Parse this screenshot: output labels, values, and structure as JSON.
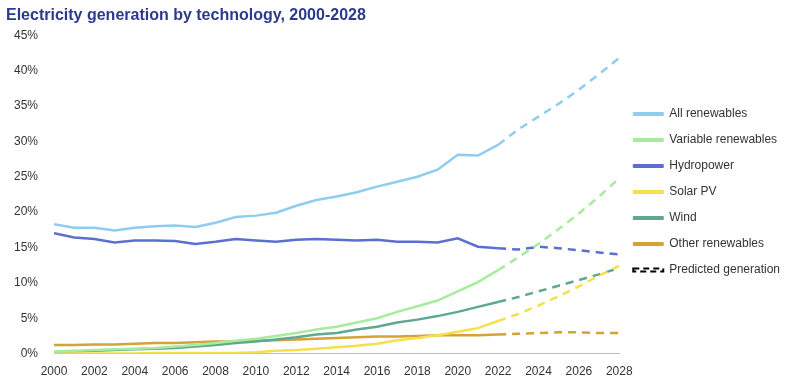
{
  "chart_data": {
    "type": "line",
    "title": "Electricity generation by technology, 2000-2028",
    "x": [
      2000,
      2001,
      2002,
      2003,
      2004,
      2005,
      2006,
      2007,
      2008,
      2009,
      2010,
      2011,
      2012,
      2013,
      2014,
      2015,
      2016,
      2017,
      2018,
      2019,
      2020,
      2021,
      2022,
      2023,
      2024,
      2025,
      2026,
      2027,
      2028
    ],
    "xlim": [
      2000,
      2028
    ],
    "xticks": [
      2000,
      2002,
      2004,
      2006,
      2008,
      2010,
      2012,
      2014,
      2016,
      2018,
      2020,
      2022,
      2024,
      2026,
      2028
    ],
    "ylim": [
      0,
      45
    ],
    "yticks": [
      {
        "value": 0,
        "label": "0%"
      },
      {
        "value": 5,
        "label": "5%"
      },
      {
        "value": 10,
        "label": "10%"
      },
      {
        "value": 15,
        "label": "15%"
      },
      {
        "value": 20,
        "label": "20%"
      },
      {
        "value": 25,
        "label": "25%"
      },
      {
        "value": 30,
        "label": "30%"
      },
      {
        "value": 35,
        "label": "35%"
      },
      {
        "value": 40,
        "label": "40%"
      },
      {
        "value": 45,
        "label": "45%"
      }
    ],
    "grid": false,
    "legend": "right",
    "marker": "none",
    "series": [
      {
        "name": "All renewables",
        "color": "#8ecdf0",
        "line_style": "solid",
        "values": [
          18.3,
          17.8,
          17.8,
          17.4,
          17.8,
          18.0,
          18.1,
          17.9,
          18.5,
          19.3,
          19.5,
          19.9,
          20.9,
          21.7,
          22.2,
          22.8,
          23.6,
          24.3,
          25.0,
          26.0,
          28.1,
          28.0,
          29.5,
          null,
          null,
          null,
          null,
          null,
          null
        ]
      },
      {
        "name": "Variable renewables",
        "color": "#a6ec9c",
        "line_style": "solid",
        "values": [
          0.3,
          0.4,
          0.5,
          0.6,
          0.7,
          0.8,
          1.0,
          1.2,
          1.5,
          1.8,
          2.1,
          2.5,
          2.9,
          3.4,
          3.8,
          4.4,
          5.0,
          5.9,
          6.7,
          7.5,
          8.8,
          10.1,
          11.8,
          null,
          null,
          null,
          null,
          null,
          null
        ]
      },
      {
        "name": "Hydropower",
        "color": "#5b6fd1",
        "line_style": "solid",
        "values": [
          17.0,
          16.4,
          16.2,
          15.7,
          16.0,
          16.0,
          15.9,
          15.5,
          15.8,
          16.2,
          16.0,
          15.8,
          16.1,
          16.2,
          16.1,
          16.0,
          16.1,
          15.8,
          15.8,
          15.7,
          16.3,
          15.1,
          14.9,
          null,
          null,
          null,
          null,
          null,
          null
        ]
      },
      {
        "name": "Solar PV",
        "color": "#f5e04c",
        "line_style": "solid",
        "values": [
          0.0,
          0.0,
          0.0,
          0.0,
          0.0,
          0.1,
          0.1,
          0.1,
          0.1,
          0.1,
          0.2,
          0.4,
          0.5,
          0.7,
          0.9,
          1.1,
          1.4,
          1.9,
          2.2,
          2.6,
          3.1,
          3.6,
          4.6,
          null,
          null,
          null,
          null,
          null,
          null
        ]
      },
      {
        "name": "Wind",
        "color": "#5fa890",
        "line_style": "solid",
        "values": [
          0.2,
          0.3,
          0.4,
          0.5,
          0.6,
          0.7,
          0.8,
          1.0,
          1.2,
          1.5,
          1.7,
          2.0,
          2.3,
          2.7,
          2.9,
          3.4,
          3.8,
          4.4,
          4.8,
          5.3,
          5.9,
          6.6,
          7.3,
          null,
          null,
          null,
          null,
          null,
          null
        ]
      },
      {
        "name": "Other renewables",
        "color": "#d4a236",
        "line_style": "solid",
        "values": [
          1.2,
          1.2,
          1.3,
          1.3,
          1.4,
          1.5,
          1.5,
          1.6,
          1.7,
          1.7,
          1.8,
          1.9,
          2.0,
          2.1,
          2.2,
          2.3,
          2.4,
          2.4,
          2.5,
          2.6,
          2.6,
          2.6,
          2.7,
          null,
          null,
          null,
          null,
          null,
          null
        ]
      },
      {
        "color": "#8ecdf0",
        "line_style": "dashed",
        "values": [
          null,
          null,
          null,
          null,
          null,
          null,
          null,
          null,
          null,
          null,
          null,
          null,
          null,
          null,
          null,
          null,
          null,
          null,
          null,
          null,
          null,
          null,
          29.5,
          31.7,
          33.5,
          35.3,
          37.3,
          39.5,
          41.8
        ]
      },
      {
        "color": "#a6ec9c",
        "line_style": "dashed",
        "values": [
          null,
          null,
          null,
          null,
          null,
          null,
          null,
          null,
          null,
          null,
          null,
          null,
          null,
          null,
          null,
          null,
          null,
          null,
          null,
          null,
          null,
          null,
          11.8,
          13.6,
          15.5,
          17.6,
          19.8,
          22.2,
          24.8
        ]
      },
      {
        "color": "#5b6fd1",
        "line_style": "dashed",
        "values": [
          null,
          null,
          null,
          null,
          null,
          null,
          null,
          null,
          null,
          null,
          null,
          null,
          null,
          null,
          null,
          null,
          null,
          null,
          null,
          null,
          null,
          null,
          14.9,
          14.7,
          15.1,
          14.9,
          14.6,
          14.3,
          14.0
        ]
      },
      {
        "color": "#f5e04c",
        "line_style": "dashed",
        "values": [
          null,
          null,
          null,
          null,
          null,
          null,
          null,
          null,
          null,
          null,
          null,
          null,
          null,
          null,
          null,
          null,
          null,
          null,
          null,
          null,
          null,
          null,
          4.6,
          5.6,
          6.8,
          8.1,
          9.5,
          11.0,
          12.4
        ]
      },
      {
        "color": "#5fa890",
        "line_style": "dashed",
        "values": [
          null,
          null,
          null,
          null,
          null,
          null,
          null,
          null,
          null,
          null,
          null,
          null,
          null,
          null,
          null,
          null,
          null,
          null,
          null,
          null,
          null,
          null,
          7.3,
          8.0,
          8.8,
          9.6,
          10.4,
          11.2,
          12.1
        ]
      },
      {
        "color": "#d4a236",
        "line_style": "dashed",
        "values": [
          null,
          null,
          null,
          null,
          null,
          null,
          null,
          null,
          null,
          null,
          null,
          null,
          null,
          null,
          null,
          null,
          null,
          null,
          null,
          null,
          null,
          null,
          2.7,
          2.8,
          2.9,
          3.0,
          3.0,
          2.9,
          2.9
        ]
      },
      {
        "name": "Predicted generation",
        "color": "#000000",
        "line_style": "dashed",
        "values": [
          null,
          null,
          null,
          null,
          null,
          null,
          null,
          null,
          null,
          null,
          null,
          null,
          null,
          null,
          null,
          null,
          null,
          null,
          null,
          null,
          null,
          null,
          null,
          null,
          null,
          null,
          null,
          null,
          null
        ]
      }
    ]
  }
}
